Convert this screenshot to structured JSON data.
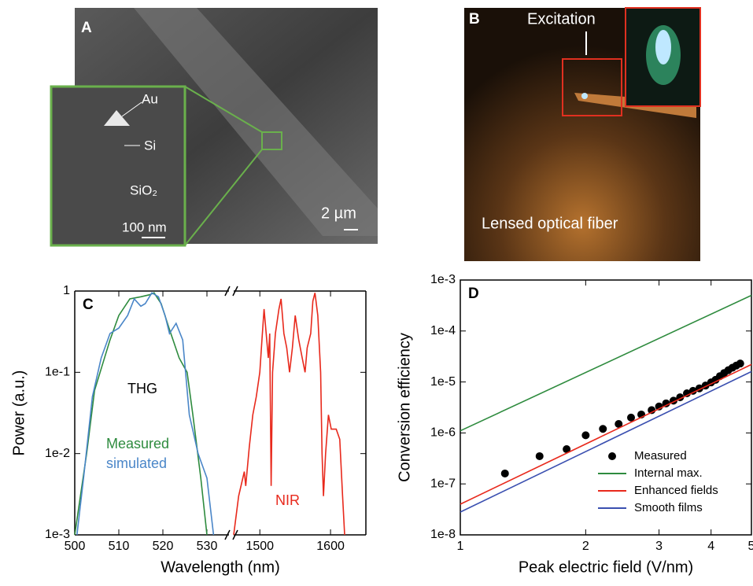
{
  "images": [
    {
      "label": "A",
      "annotations": [
        "Au",
        "Si",
        "SiO₂",
        "100 nm",
        "2 µm"
      ]
    },
    {
      "label": "B",
      "annotations": [
        "Excitation",
        "Lensed optical fiber"
      ]
    }
  ],
  "chart_data": [
    {
      "type": "line",
      "panel": "C",
      "xlabel": "Wavelength (nm)",
      "ylabel": "Power (a.u.)",
      "annotations": [
        "THG"
      ],
      "broken_axis": true,
      "xlims": [
        [
          500,
          535
        ],
        [
          1463,
          1650
        ]
      ],
      "xticks": [
        500,
        510,
        520,
        530,
        1500,
        1600
      ],
      "ylim": [
        0.001,
        1
      ],
      "yscale": "log",
      "yticks": [
        {
          "value": 0.001,
          "label": "1e-3"
        },
        {
          "value": 0.01,
          "label": "1e-2"
        },
        {
          "value": 0.1,
          "label": "1e-1"
        },
        1
      ],
      "series": [
        {
          "name": "Measured",
          "color": "#2e8b3e",
          "x": [
            500,
            502.7,
            504.5,
            508,
            510,
            512.5,
            515,
            517,
            518,
            519.6,
            521.4,
            523.7,
            525.5,
            526.8,
            528.6,
            530
          ],
          "values": [
            0.001,
            0.01,
            0.06,
            0.25,
            0.5,
            0.8,
            0.85,
            0.9,
            0.95,
            0.7,
            0.35,
            0.15,
            0.1,
            0.03,
            0.005,
            0.001
          ]
        },
        {
          "name": "simulated",
          "color": "#4a86c8",
          "x": [
            500.5,
            502,
            504,
            506,
            508,
            510,
            512,
            513.5,
            515,
            516,
            517.5,
            519,
            520.5,
            521.5,
            523,
            524.5,
            526,
            528,
            530,
            531.5
          ],
          "values": [
            0.001,
            0.005,
            0.05,
            0.15,
            0.3,
            0.35,
            0.5,
            0.8,
            0.65,
            0.7,
            0.95,
            0.85,
            0.5,
            0.3,
            0.4,
            0.25,
            0.03,
            0.01,
            0.005,
            0.001
          ]
        },
        {
          "name": "NIR",
          "color": "#e8291c",
          "x": [
            1463,
            1470,
            1478,
            1480,
            1485,
            1490,
            1495,
            1500,
            1503,
            1506,
            1509,
            1512,
            1514,
            1516,
            1518,
            1522,
            1527,
            1530,
            1534,
            1538,
            1542,
            1546,
            1550,
            1555,
            1560,
            1564,
            1567,
            1572,
            1575,
            1578,
            1582,
            1586,
            1588,
            1590,
            1593,
            1597,
            1601,
            1608,
            1613,
            1617,
            1620
          ],
          "values": [
            0.001,
            0.003,
            0.006,
            0.004,
            0.012,
            0.03,
            0.05,
            0.1,
            0.25,
            0.6,
            0.3,
            0.15,
            0.3,
            0.004,
            0.1,
            0.3,
            0.6,
            0.8,
            0.3,
            0.2,
            0.1,
            0.2,
            0.5,
            0.25,
            0.15,
            0.1,
            0.2,
            0.3,
            0.75,
            0.95,
            0.5,
            0.1,
            0.01,
            0.003,
            0.01,
            0.03,
            0.02,
            0.02,
            0.015,
            0.003,
            0.001
          ]
        }
      ]
    },
    {
      "type": "line",
      "panel": "D",
      "xlabel": "Peak electric field (V/nm)",
      "ylabel": "Conversion efficiency",
      "xlim": [
        1,
        5
      ],
      "xscale": "log",
      "xticks": [
        1,
        2,
        3,
        4,
        5
      ],
      "ylim": [
        1e-08,
        0.001
      ],
      "yscale": "log",
      "yticks": [
        {
          "value": 1e-08,
          "label": "1e-8"
        },
        {
          "value": 1e-07,
          "label": "1e-7"
        },
        {
          "value": 1e-06,
          "label": "1e-6"
        },
        {
          "value": 1e-05,
          "label": "1e-5"
        },
        {
          "value": 0.0001,
          "label": "1e-4"
        },
        {
          "value": 0.001,
          "label": "1e-3"
        }
      ],
      "legend": "lower right",
      "series": [
        {
          "name": "Measured",
          "color": "#000000",
          "kind": "scatter",
          "x": [
            1.28,
            1.55,
            1.8,
            2.0,
            2.2,
            2.4,
            2.57,
            2.72,
            2.88,
            3.0,
            3.12,
            3.25,
            3.37,
            3.5,
            3.62,
            3.75,
            3.88,
            4.0,
            4.1,
            4.2,
            4.3,
            4.4,
            4.5,
            4.6,
            4.7
          ],
          "values": [
            1.6e-07,
            3.5e-07,
            4.8e-07,
            9e-07,
            1.2e-06,
            1.5e-06,
            2e-06,
            2.3e-06,
            2.8e-06,
            3.3e-06,
            3.8e-06,
            4.3e-06,
            5e-06,
            6e-06,
            6.7e-06,
            7.5e-06,
            8.5e-06,
            9.8e-06,
            1.1e-05,
            1.3e-05,
            1.5e-05,
            1.7e-05,
            1.9e-05,
            2.1e-05,
            2.3e-05
          ]
        },
        {
          "name": "Internal max.",
          "color": "#2e8b3e",
          "x": [
            1,
            5
          ],
          "values": [
            1.1e-06,
            0.0005
          ]
        },
        {
          "name": "Enhanced fields",
          "color": "#e8291c",
          "x": [
            1,
            5
          ],
          "values": [
            4e-08,
            2.2e-05
          ]
        },
        {
          "name": "Smooth films",
          "color": "#3a4fb0",
          "x": [
            1,
            5
          ],
          "values": [
            2.8e-08,
            1.6e-05
          ]
        }
      ]
    }
  ]
}
